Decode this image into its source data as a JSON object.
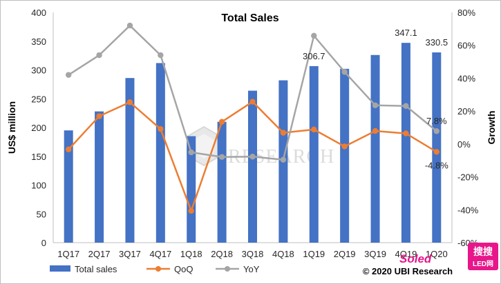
{
  "chart_data": {
    "type": "bar",
    "title": "Total Sales",
    "xlabel": "",
    "ylabel": "US$ million",
    "y2label": "Growth",
    "ylim": [
      0,
      400
    ],
    "yticks": [
      "0",
      "50",
      "100",
      "150",
      "200",
      "250",
      "300",
      "350",
      "400"
    ],
    "y2lim": [
      -60,
      80
    ],
    "y2ticks": [
      "-60%",
      "-40%",
      "-20%",
      "0%",
      "20%",
      "40%",
      "60%",
      "80%"
    ],
    "categories": [
      "1Q17",
      "2Q17",
      "3Q17",
      "4Q17",
      "1Q18",
      "2Q18",
      "3Q18",
      "4Q18",
      "1Q19",
      "2Q19",
      "3Q19",
      "4Q19",
      "1Q20"
    ],
    "series": [
      {
        "name": "Total sales",
        "kind": "bar",
        "axis": "left",
        "color": "#4472c4",
        "values": [
          195,
          228,
          286,
          312,
          185,
          210,
          264,
          282,
          306.7,
          302,
          326,
          347.1,
          330.5
        ]
      },
      {
        "name": "QoQ",
        "kind": "line",
        "axis": "right",
        "color": "#ed7d31",
        "values": [
          -3.3,
          16.9,
          25.4,
          9.1,
          -40.7,
          13.5,
          25.7,
          6.8,
          8.8,
          -1.5,
          7.9,
          6.4,
          -4.8
        ]
      },
      {
        "name": "YoY",
        "kind": "line",
        "axis": "right",
        "color": "#a5a5a5",
        "values": [
          42,
          54,
          72,
          54,
          -5.1,
          -7.9,
          -7.7,
          -9.6,
          65.8,
          43.8,
          23.5,
          23.1,
          7.8
        ]
      }
    ],
    "data_labels": [
      {
        "text": "306.7",
        "category": "1Q19",
        "series": "Total sales"
      },
      {
        "text": "347.1",
        "category": "4Q19",
        "series": "Total sales"
      },
      {
        "text": "330.5",
        "category": "1Q20",
        "series": "Total sales"
      },
      {
        "text": "7.8%",
        "category": "1Q20",
        "series": "YoY"
      },
      {
        "text": "-4.8%",
        "category": "1Q20",
        "series": "QoQ"
      }
    ],
    "legend": {
      "position": "bottom-left",
      "entries": [
        "Total sales",
        "QoQ",
        "YoY"
      ]
    },
    "grid": false
  },
  "watermark": {
    "logo_text": "RESEARCH"
  },
  "copyright": "© 2020  UBI Research",
  "corner_logo": {
    "text": "Soled",
    "chinese": "搜搜",
    "sub": "LED网"
  }
}
